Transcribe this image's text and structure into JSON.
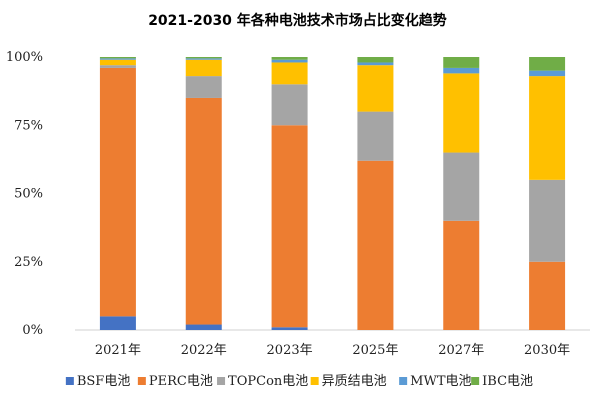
{
  "title": "2021-2030 年各种电池技术市场占比变化趋势",
  "chart_data": {
    "type": "bar",
    "stacked": true,
    "title": "2021-2030 年各种电池技术市场占比变化趋势",
    "categories": [
      "2021年",
      "2022年",
      "2023年",
      "2025年",
      "2027年",
      "2030年"
    ],
    "y_ticks": [
      "0%",
      "25%",
      "50%",
      "75%",
      "100%"
    ],
    "ylim": [
      0,
      100
    ],
    "grid": false,
    "legend_position": "bottom",
    "series": [
      {
        "name": "BSF电池",
        "color": "#4472C4",
        "values": [
          5,
          2,
          1,
          0,
          0,
          0
        ]
      },
      {
        "name": "PERC电池",
        "color": "#ED7D31",
        "values": [
          91,
          83,
          74,
          62,
          40,
          25
        ]
      },
      {
        "name": "TOPCon电池",
        "color": "#A5A5A5",
        "values": [
          1,
          8,
          15,
          18,
          25,
          30
        ]
      },
      {
        "name": "异质结电池",
        "color": "#FFC000",
        "values": [
          2,
          6,
          8,
          17,
          29,
          38
        ]
      },
      {
        "name": "MWT电池",
        "color": "#5B9BD5",
        "values": [
          0.5,
          0.5,
          1,
          1,
          2,
          2
        ]
      },
      {
        "name": "IBC电池",
        "color": "#70AD47",
        "values": [
          0.5,
          0.5,
          1,
          2,
          4,
          5
        ]
      }
    ]
  }
}
